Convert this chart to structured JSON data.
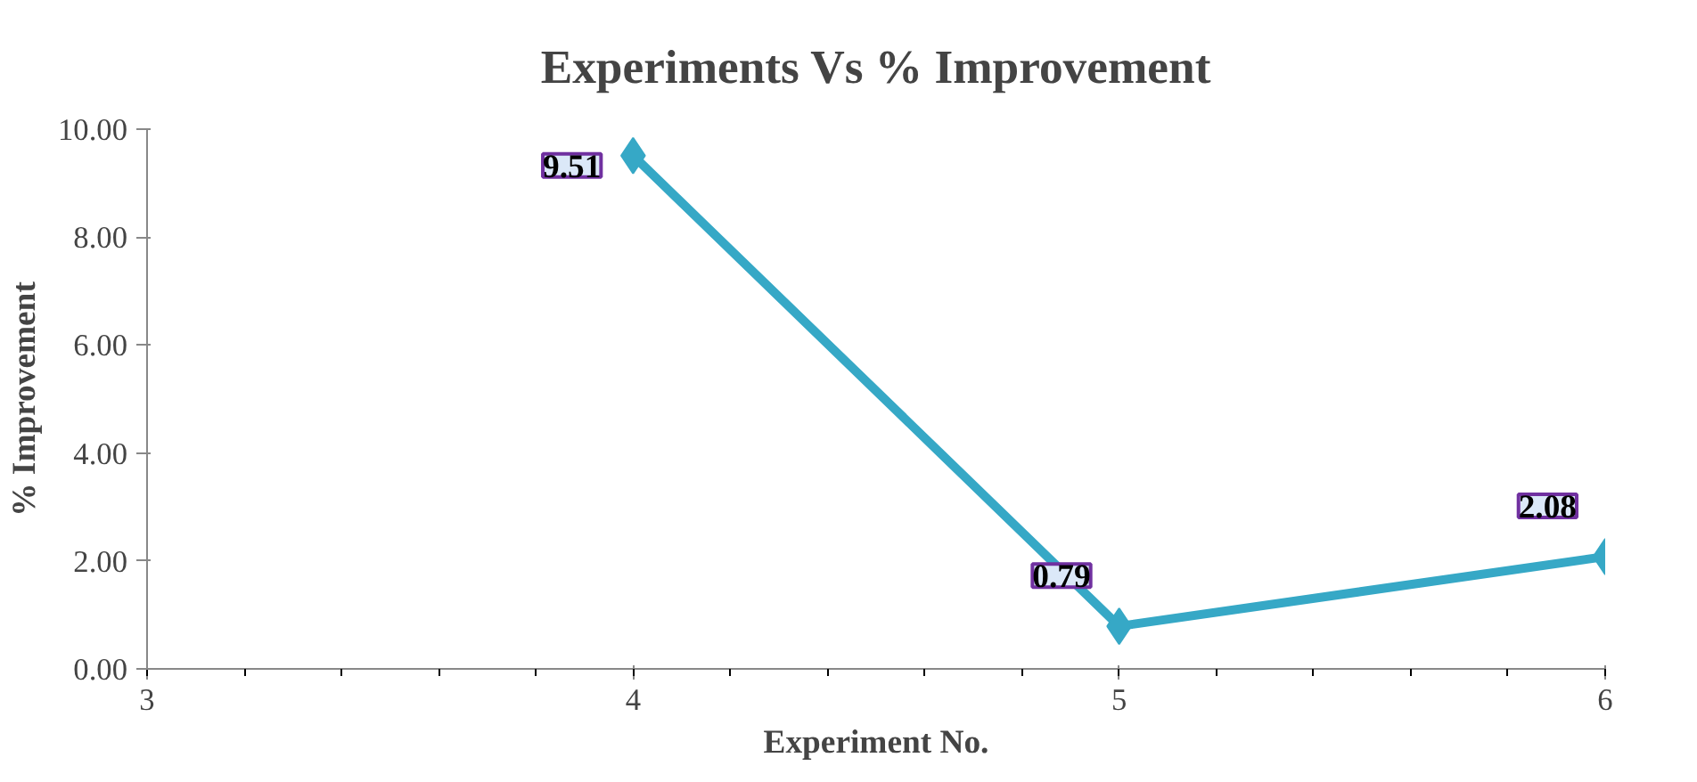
{
  "chart_data": {
    "type": "line",
    "title": "Experiments Vs % Improvement",
    "xlabel": "Experiment No.",
    "ylabel": "% Improvement",
    "x": [
      4,
      5,
      6
    ],
    "series": [
      {
        "color": "#36a8c6",
        "values": [
          9.51,
          0.79,
          2.08
        ]
      }
    ],
    "xlim": [
      3,
      6
    ],
    "xticks": [
      3,
      4,
      5,
      6
    ],
    "ylim": [
      0,
      10
    ],
    "yticks": [
      {
        "value": 0,
        "label": "0.00"
      },
      {
        "value": 2,
        "label": "2.00"
      },
      {
        "value": 4,
        "label": "4.00"
      },
      {
        "value": 6,
        "label": "6.00"
      },
      {
        "value": 8,
        "label": "8.00"
      },
      {
        "value": 10,
        "label": "10.00"
      }
    ],
    "data_labels": true,
    "marker": "diamond",
    "line_style": "solid",
    "grid": false
  }
}
